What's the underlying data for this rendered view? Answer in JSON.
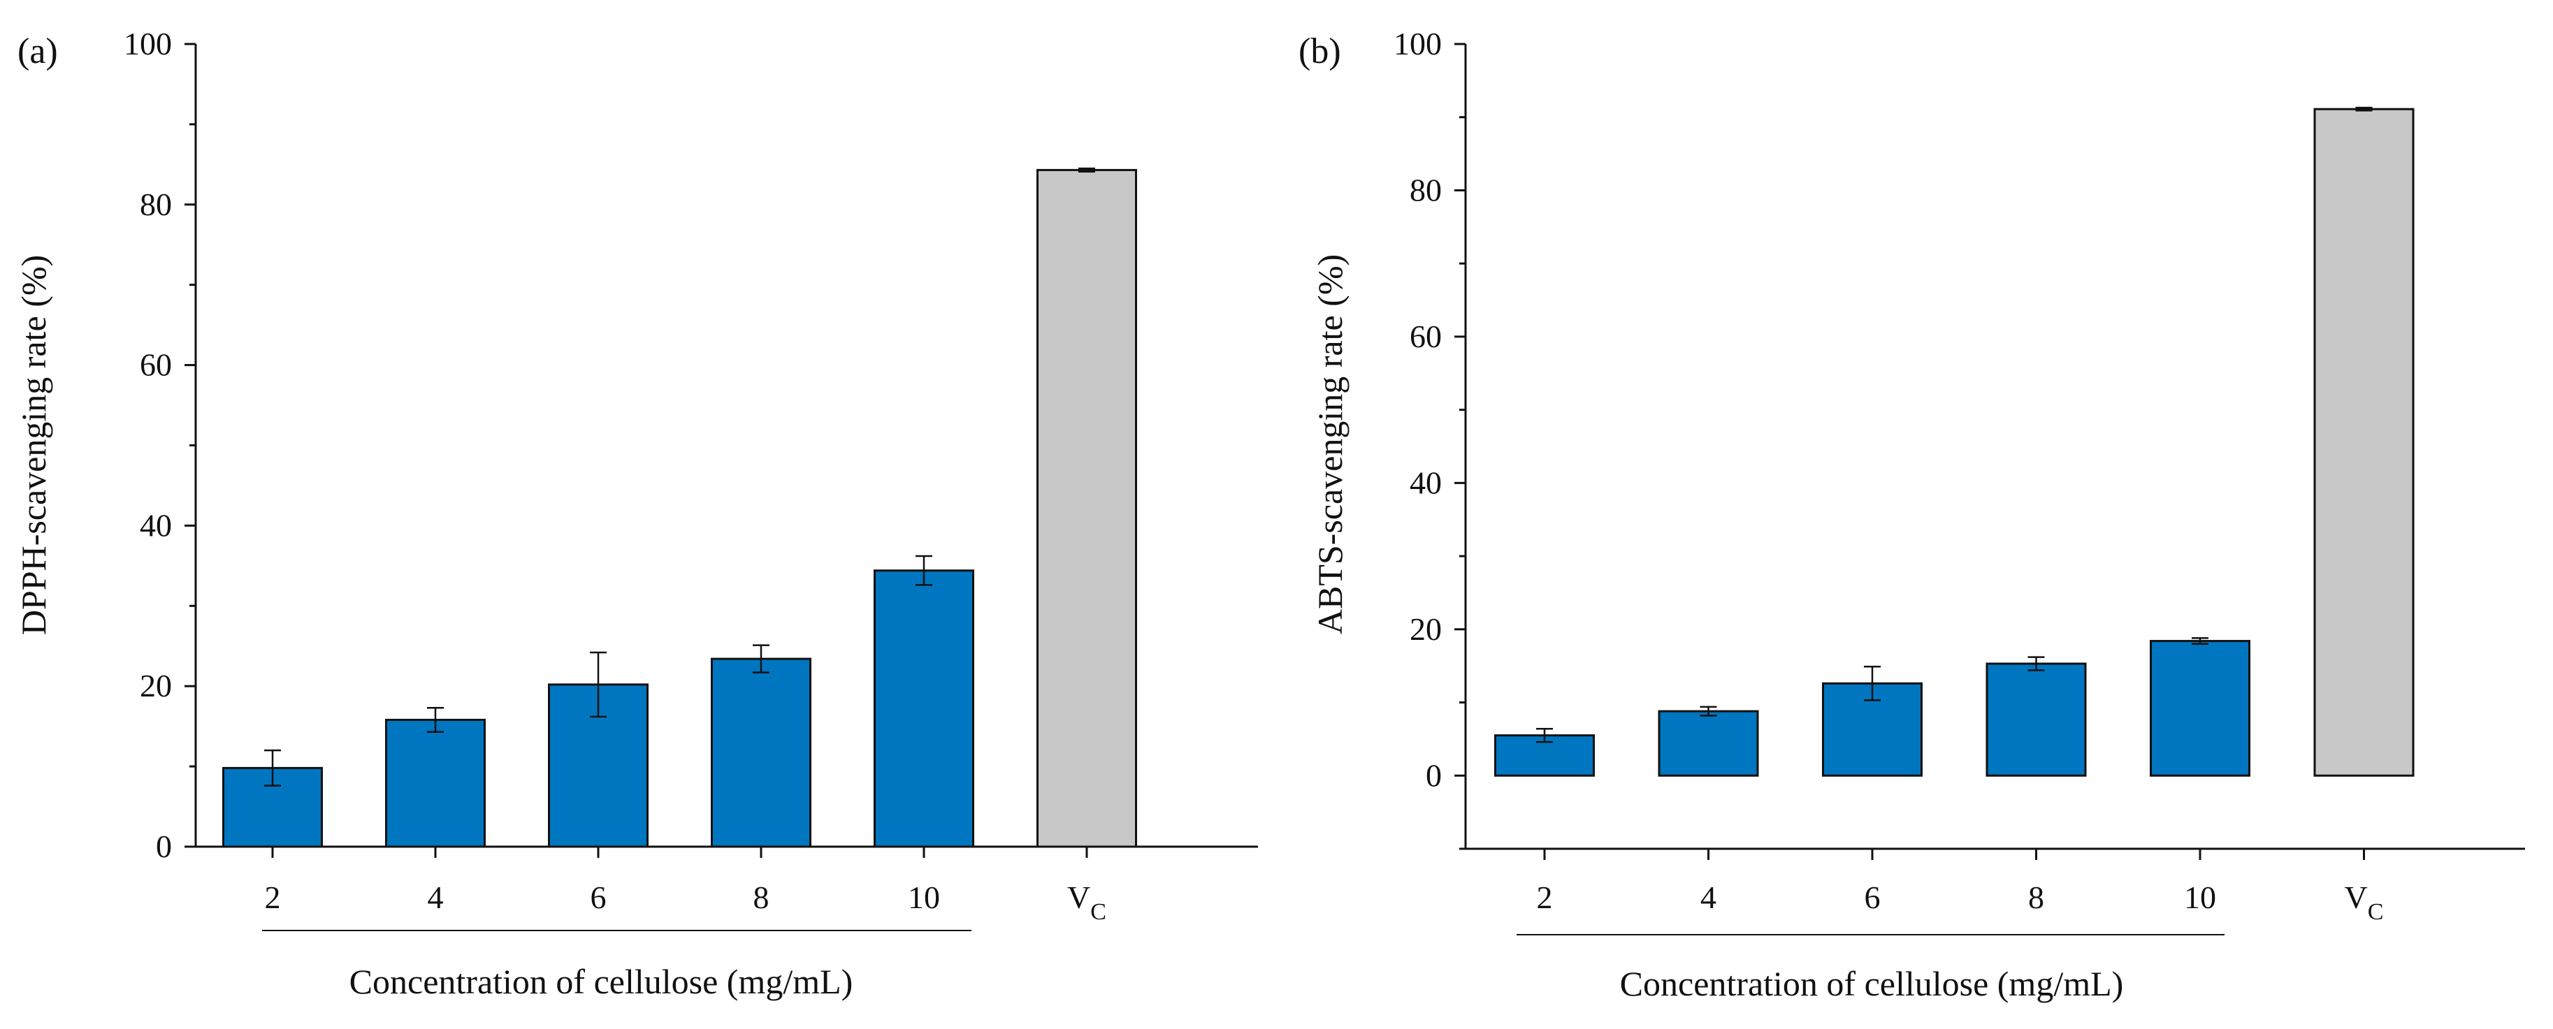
{
  "figure": {
    "panel_count": 2
  },
  "chart_data": [
    {
      "type": "bar",
      "panel_label": "(a)",
      "title": "",
      "ylabel": "DPPH-scavenging rate (%)",
      "xlabel": "Concentration of cellulose (mg/mL)",
      "ylim": [
        0,
        100
      ],
      "yticks": [
        "0",
        "20",
        "40",
        "60",
        "80",
        "100"
      ],
      "categories": [
        "2",
        "4",
        "6",
        "8",
        "10",
        "V"
      ],
      "category_subscripts": [
        "",
        "",
        "",
        "",
        "",
        "C"
      ],
      "values": [
        9.8,
        15.8,
        20.2,
        23.4,
        34.4,
        84.3
      ],
      "errors": [
        2.2,
        1.5,
        4.0,
        1.7,
        1.8,
        0.2
      ],
      "bar_colors": [
        "#0076C0",
        "#0076C0",
        "#0076C0",
        "#0076C0",
        "#0076C0",
        "#C8C8C8"
      ],
      "group_underline_categories": [
        "2",
        "10"
      ]
    },
    {
      "type": "bar",
      "panel_label": "(b)",
      "title": "",
      "ylabel": "ABTS-scavenging rate (%)",
      "xlabel": "Concentration of cellulose (mg/mL)",
      "ylim": [
        -10,
        100
      ],
      "yticks": [
        "0",
        "20",
        "40",
        "60",
        "80",
        "100"
      ],
      "categories": [
        "2",
        "4",
        "6",
        "8",
        "10",
        "V"
      ],
      "category_subscripts": [
        "",
        "",
        "",
        "",
        "",
        "C"
      ],
      "values": [
        5.5,
        8.8,
        12.6,
        15.3,
        18.4,
        91.1
      ],
      "errors": [
        0.9,
        0.6,
        2.3,
        0.9,
        0.4,
        0.2
      ],
      "bar_colors": [
        "#0076C0",
        "#0076C0",
        "#0076C0",
        "#0076C0",
        "#0076C0",
        "#C8C8C8"
      ],
      "group_underline_categories": [
        "2",
        "10"
      ]
    }
  ]
}
